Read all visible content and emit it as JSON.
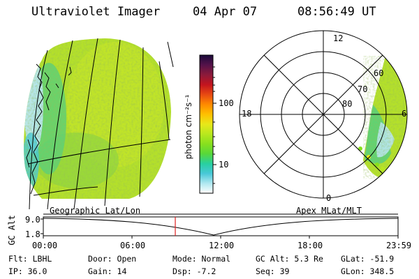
{
  "header": {
    "instrument": "Ultraviolet Imager",
    "date": "04 Apr 07",
    "time": "08:56:49 UT"
  },
  "colorbar": {
    "unit_label": "photon cm⁻²s⁻¹",
    "tick_labels": [
      "100",
      "10"
    ],
    "colors": [
      "#1a0a3a",
      "#55124a",
      "#8c1a3a",
      "#c4141e",
      "#e84a12",
      "#ff8a00",
      "#ffc000",
      "#e8e81a",
      "#b8e81e",
      "#88e01e",
      "#58d83a",
      "#28d0a0",
      "#48c8d8",
      "#b0e8f0",
      "#ffffff"
    ]
  },
  "geo_panel": {
    "label": "Geographic Lat/Lon"
  },
  "polar_panel": {
    "label": "Apex MLat/MLT",
    "mlt_labels": {
      "top": "12",
      "left": "18",
      "right": "6",
      "bottom": "0"
    },
    "lat_labels": [
      "60",
      "70",
      "80"
    ]
  },
  "altitude_plot": {
    "y_axis_label": "GC Alt",
    "y_ticks": [
      "9.0",
      "1.8"
    ],
    "x_ticks": [
      "00:00",
      "06:00",
      "12:00",
      "18:00",
      "23:59"
    ],
    "marker_color": "#e02020"
  },
  "footer": {
    "filter": "Flt: LBHL",
    "ip": "IP: 36.0",
    "door": "Door: Open",
    "gain": "Gain: 14",
    "mode": "Mode: Normal",
    "dsp": "Dsp:   -7.2",
    "gc_alt": "GC Alt: 5.3 Re",
    "seq": "Seq: 39",
    "glat": "GLat: -51.9",
    "glon": "GLon: 348.5"
  }
}
